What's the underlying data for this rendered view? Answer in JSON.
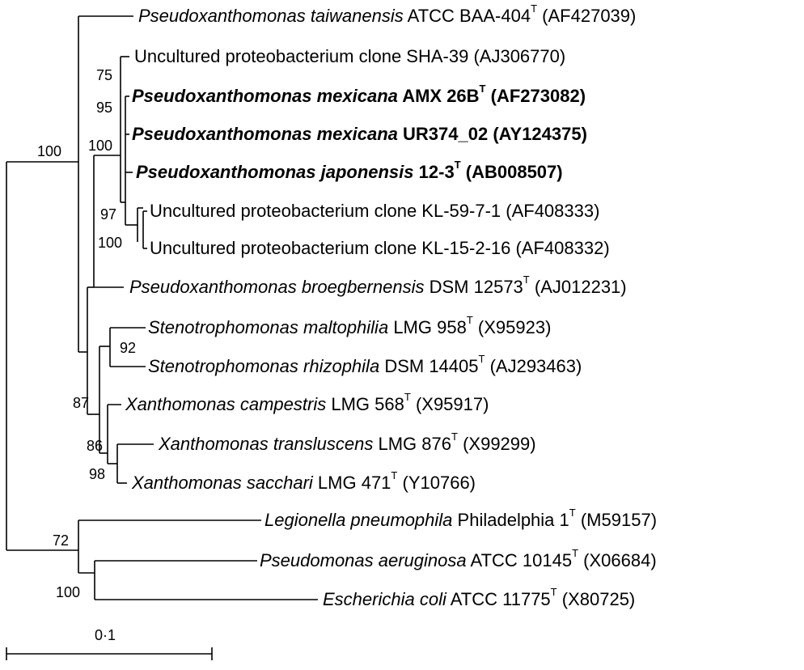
{
  "taxa": [
    {
      "genus": "Pseudoxanthomonas taiwanensis",
      "rest": "ATCC BAA-404",
      "type_strain": true,
      "accession": "(AF427039)",
      "bold": false
    },
    {
      "genus": "",
      "rest": "Uncultured proteobacterium clone SHA-39",
      "type_strain": false,
      "accession": "(AJ306770)",
      "bold": false
    },
    {
      "genus": "Pseudoxanthomonas mexicana",
      "rest": "AMX 26B",
      "type_strain": true,
      "accession": "(AF273082)",
      "bold": true
    },
    {
      "genus": "Pseudoxanthomonas mexicana",
      "rest": "UR374_02",
      "type_strain": false,
      "accession": "(AY124375)",
      "bold": true
    },
    {
      "genus": "Pseudoxanthomonas japonensis",
      "rest": "12-3",
      "type_strain": true,
      "accession": "(AB008507)",
      "bold": true
    },
    {
      "genus": "",
      "rest": "Uncultured proteobacterium clone KL-59-7-1",
      "type_strain": false,
      "accession": "(AF408333)",
      "bold": false
    },
    {
      "genus": "",
      "rest": "Uncultured proteobacterium clone KL-15-2-16",
      "type_strain": false,
      "accession": "(AF408332)",
      "bold": false
    },
    {
      "genus": "Pseudoxanthomonas broegbernensis",
      "rest": "DSM 12573",
      "type_strain": true,
      "accession": "(AJ012231)",
      "bold": false
    },
    {
      "genus": "Stenotrophomonas maltophilia",
      "rest": "LMG 958",
      "type_strain": true,
      "accession": "(X95923)",
      "bold": false
    },
    {
      "genus": "Stenotrophomonas rhizophila",
      "rest": "DSM 14405",
      "type_strain": true,
      "accession": "(AJ293463)",
      "bold": false
    },
    {
      "genus": "Xanthomonas campestris",
      "rest": "LMG 568",
      "type_strain": true,
      "accession": "(X95917)",
      "bold": false
    },
    {
      "genus": "Xanthomonas transluscens",
      "rest": "LMG 876",
      "type_strain": true,
      "accession": "(X99299)",
      "bold": false
    },
    {
      "genus": "Xanthomonas sacchari",
      "rest": "LMG 471",
      "type_strain": true,
      "accession": "(Y10766)",
      "bold": false
    },
    {
      "genus": "Legionella pneumophila",
      "rest": "Philadelphia 1",
      "type_strain": true,
      "accession": "(M59157)",
      "bold": false
    },
    {
      "genus": "Pseudomonas aeruginosa",
      "rest": "ATCC 10145",
      "type_strain": true,
      "accession": "(X06684)",
      "bold": false
    },
    {
      "genus": "Escherichia coli",
      "rest": "ATCC 11775",
      "type_strain": true,
      "accession": "(X80725)",
      "bold": false
    }
  ],
  "type_strain_mark": "T",
  "bootstrap": [
    "100",
    "75",
    "95",
    "100",
    "97",
    "100",
    "92",
    "87",
    "86",
    "98",
    "72",
    "100"
  ],
  "scale_bar": {
    "label": "0·1",
    "value": 0.1
  },
  "colors": {
    "line": "#000000",
    "text": "#000000",
    "background": "#ffffff"
  }
}
